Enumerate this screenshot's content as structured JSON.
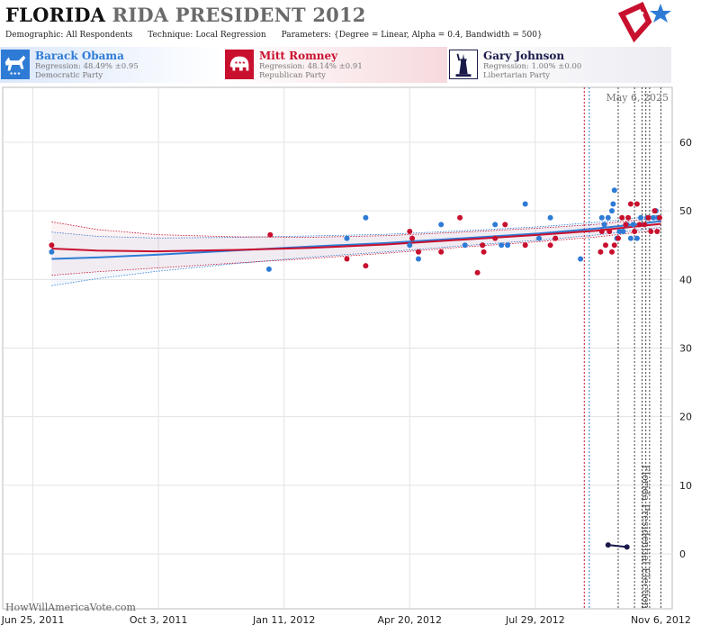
{
  "header": {
    "title_state": "FLORIDA",
    "title_rest": "RIDA PRESIDENT 2012",
    "params": [
      {
        "key": "Demographic:",
        "value": "All Respondents"
      },
      {
        "key": "Technique:",
        "value": "Local Regression"
      },
      {
        "key": "Parameters:",
        "value": "{Degree = Linear, Alpha = 0.4, Bandwidth = 500}"
      }
    ]
  },
  "candidates": [
    {
      "name": "Barack Obama",
      "regression": "Regression: 48.49% ±0.95",
      "party": "Democratic Party",
      "color": "#2e7bd6",
      "icon": "donkey-icon"
    },
    {
      "name": "Mitt Romney",
      "regression": "Regression: 48.14% ±0.91",
      "party": "Republican Party",
      "color": "#c8102e",
      "icon": "elephant-icon"
    },
    {
      "name": "Gary Johnson",
      "regression": "Regression: 1.00% ±0.00",
      "party": "Libertarian Party",
      "color": "#1a1a4a",
      "icon": "statue-of-liberty-icon"
    }
  ],
  "watermark": "HowWillAmericaVote.com",
  "datestamp": "May 6, 2025",
  "election_label": "Florida Presidential Election",
  "chart_data": {
    "type": "scatter",
    "x_ticks": [
      "Jun 25, 2011",
      "Oct 3, 2011",
      "Jan 11, 2012",
      "Apr 20, 2012",
      "Jul 29, 2012",
      "Nov 6, 2012"
    ],
    "y_ticks": [
      0,
      10,
      20,
      30,
      40,
      50,
      60
    ],
    "xlim": [
      "2011-06-01",
      "2012-11-15"
    ],
    "ylim": [
      -8,
      68
    ],
    "grid": true,
    "vertical_event_lines": [
      {
        "date": "2012-09-06",
        "color": "#c8102e"
      },
      {
        "date": "2012-09-10",
        "color": "#2e7bd6"
      },
      {
        "date": "2012-10-03",
        "color": "#444444"
      },
      {
        "date": "2012-10-16",
        "color": "#444444"
      },
      {
        "date": "2012-10-22",
        "color": "#444444"
      },
      {
        "date": "2012-10-25",
        "color": "#444444"
      },
      {
        "date": "2012-10-28",
        "color": "#444444"
      },
      {
        "date": "2012-11-06",
        "color": "#444444"
      }
    ],
    "series": [
      {
        "name": "Barack Obama",
        "color": "#2e7bd6",
        "trend": [
          [
            "2011-07-10",
            43
          ],
          [
            "2011-08-15",
            43.2
          ],
          [
            "2011-10-01",
            43.6
          ],
          [
            "2011-12-01",
            44.2
          ],
          [
            "2012-02-01",
            44.8
          ],
          [
            "2012-04-01",
            45.3
          ],
          [
            "2012-06-01",
            46
          ],
          [
            "2012-08-01",
            46.7
          ],
          [
            "2012-09-15",
            47.4
          ],
          [
            "2012-10-15",
            48
          ],
          [
            "2012-11-06",
            48.5
          ]
        ],
        "points": [
          [
            "2011-07-10",
            44
          ],
          [
            "2011-12-30",
            41.5
          ],
          [
            "2012-03-01",
            46
          ],
          [
            "2012-03-16",
            49
          ],
          [
            "2012-04-20",
            45
          ],
          [
            "2012-04-27",
            43
          ],
          [
            "2012-05-15",
            48
          ],
          [
            "2012-06-03",
            45
          ],
          [
            "2012-06-17",
            45
          ],
          [
            "2012-06-27",
            48
          ],
          [
            "2012-07-02",
            45
          ],
          [
            "2012-07-07",
            45
          ],
          [
            "2012-07-21",
            51
          ],
          [
            "2012-08-01",
            46
          ],
          [
            "2012-08-10",
            49
          ],
          [
            "2012-09-03",
            43
          ],
          [
            "2012-09-20",
            49
          ],
          [
            "2012-09-22",
            48
          ],
          [
            "2012-09-25",
            49
          ],
          [
            "2012-09-28",
            50
          ],
          [
            "2012-09-29",
            51
          ],
          [
            "2012-09-30",
            53
          ],
          [
            "2012-10-02",
            46
          ],
          [
            "2012-10-04",
            47
          ],
          [
            "2012-10-07",
            47
          ],
          [
            "2012-10-10",
            48
          ],
          [
            "2012-10-13",
            46
          ],
          [
            "2012-10-15",
            48
          ],
          [
            "2012-10-18",
            46
          ],
          [
            "2012-10-21",
            49
          ],
          [
            "2012-10-26",
            49
          ],
          [
            "2012-10-31",
            49
          ],
          [
            "2012-11-02",
            50
          ],
          [
            "2012-11-04",
            49
          ]
        ]
      },
      {
        "name": "Mitt Romney",
        "color": "#c8102e",
        "trend": [
          [
            "2011-07-10",
            44.5
          ],
          [
            "2011-08-15",
            44.2
          ],
          [
            "2011-10-01",
            44.1
          ],
          [
            "2011-12-01",
            44.3
          ],
          [
            "2012-02-01",
            44.6
          ],
          [
            "2012-04-01",
            45.1
          ],
          [
            "2012-06-01",
            45.8
          ],
          [
            "2012-08-01",
            46.5
          ],
          [
            "2012-09-15",
            47.1
          ],
          [
            "2012-10-15",
            47.7
          ],
          [
            "2012-11-06",
            48.1
          ]
        ],
        "points": [
          [
            "2011-07-10",
            45
          ],
          [
            "2011-12-31",
            46.5
          ],
          [
            "2012-03-01",
            43
          ],
          [
            "2012-03-16",
            42
          ],
          [
            "2012-04-20",
            47
          ],
          [
            "2012-04-22",
            46
          ],
          [
            "2012-04-27",
            44
          ],
          [
            "2012-05-15",
            44
          ],
          [
            "2012-05-30",
            49
          ],
          [
            "2012-06-13",
            41
          ],
          [
            "2012-06-18",
            44
          ],
          [
            "2012-06-17",
            45
          ],
          [
            "2012-06-27",
            46
          ],
          [
            "2012-07-05",
            48
          ],
          [
            "2012-07-21",
            45
          ],
          [
            "2012-08-10",
            45
          ],
          [
            "2012-08-14",
            46
          ],
          [
            "2012-09-19",
            44
          ],
          [
            "2012-09-20",
            47
          ],
          [
            "2012-09-23",
            45
          ],
          [
            "2012-09-26",
            47
          ],
          [
            "2012-09-28",
            44
          ],
          [
            "2012-09-30",
            45
          ],
          [
            "2012-10-03",
            46
          ],
          [
            "2012-10-06",
            49
          ],
          [
            "2012-10-09",
            48
          ],
          [
            "2012-10-11",
            49
          ],
          [
            "2012-10-13",
            51
          ],
          [
            "2012-10-16",
            47
          ],
          [
            "2012-10-18",
            51
          ],
          [
            "2012-10-20",
            48
          ],
          [
            "2012-10-24",
            48
          ],
          [
            "2012-10-27",
            49
          ],
          [
            "2012-10-29",
            47
          ],
          [
            "2012-11-01",
            50
          ],
          [
            "2012-11-03",
            47
          ],
          [
            "2012-11-05",
            49
          ]
        ]
      },
      {
        "name": "Gary Johnson",
        "color": "#1a1a4a",
        "trend": [],
        "points": [
          [
            "2012-09-25",
            1.3
          ],
          [
            "2012-10-10",
            1
          ]
        ]
      }
    ]
  }
}
